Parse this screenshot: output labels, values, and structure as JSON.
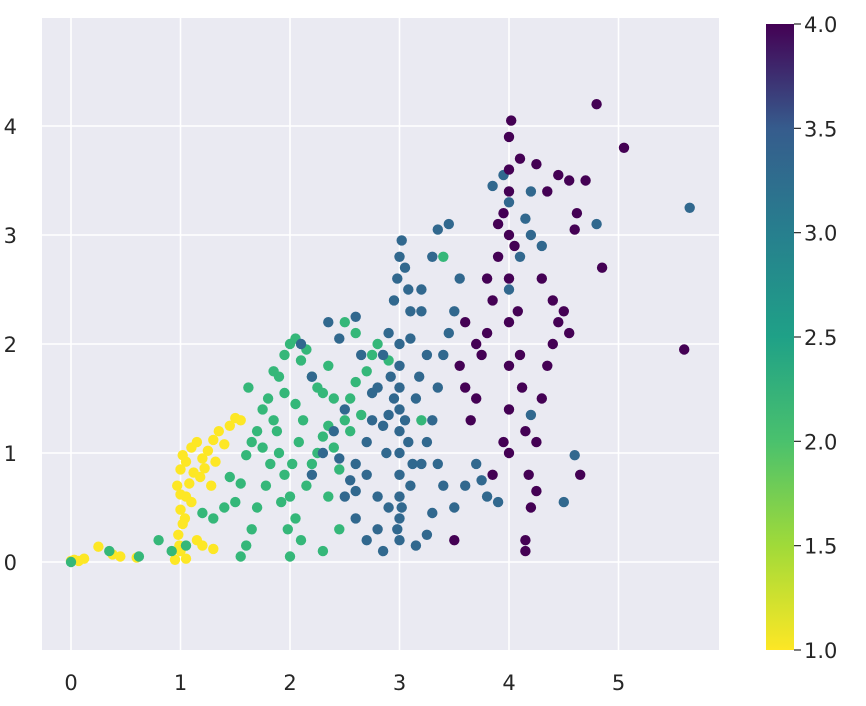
{
  "chart_data": {
    "type": "scatter",
    "title": "",
    "xlabel": "",
    "ylabel": "",
    "xlim": [
      -0.25,
      5.95
    ],
    "ylim": [
      -0.82,
      4.95
    ],
    "x_ticks": [
      "0",
      "1",
      "2",
      "3",
      "4",
      "5"
    ],
    "y_ticks": [
      "0",
      "1",
      "2",
      "3",
      "4"
    ],
    "grid": true,
    "colormap": "viridis (reversed)",
    "colorbar": {
      "range": [
        1.0,
        4.0
      ],
      "tick_labels": [
        "1.0",
        "1.5",
        "2.0",
        "2.5",
        "3.0",
        "3.5",
        "4.0"
      ]
    },
    "color_value_levels": [
      1,
      2,
      3,
      4
    ],
    "point_colors": {
      "1": "#fde725",
      "2": "#35b779",
      "3": "#31688e",
      "4": "#440154"
    },
    "series": [
      {
        "color_value": 1,
        "points": [
          [
            0.0,
            0.01
          ],
          [
            0.03,
            0.02
          ],
          [
            0.07,
            0.01
          ],
          [
            0.12,
            0.03
          ],
          [
            0.25,
            0.14
          ],
          [
            0.38,
            0.07
          ],
          [
            0.45,
            0.05
          ],
          [
            0.6,
            0.04
          ],
          [
            0.95,
            0.02
          ],
          [
            1.0,
            0.1
          ],
          [
            1.05,
            0.03
          ],
          [
            0.98,
            0.25
          ],
          [
            1.02,
            0.35
          ],
          [
            1.0,
            0.48
          ],
          [
            1.05,
            0.6
          ],
          [
            0.97,
            0.7
          ],
          [
            1.0,
            0.85
          ],
          [
            1.02,
            0.98
          ],
          [
            1.05,
            0.92
          ],
          [
            1.1,
            1.05
          ],
          [
            1.15,
            1.1
          ],
          [
            1.2,
            0.95
          ],
          [
            1.25,
            1.02
          ],
          [
            1.3,
            1.12
          ],
          [
            1.35,
            1.2
          ],
          [
            1.4,
            1.08
          ],
          [
            1.45,
            1.25
          ],
          [
            1.5,
            1.32
          ],
          [
            1.55,
            1.3
          ],
          [
            1.18,
            0.78
          ],
          [
            1.08,
            0.72
          ],
          [
            1.12,
            0.82
          ],
          [
            1.22,
            0.86
          ],
          [
            1.28,
            0.7
          ],
          [
            1.32,
            0.92
          ],
          [
            1.0,
            0.62
          ],
          [
            1.04,
            0.4
          ],
          [
            1.15,
            0.2
          ],
          [
            1.2,
            0.15
          ],
          [
            1.3,
            0.12
          ],
          [
            1.1,
            0.55
          ],
          [
            0.99,
            0.15
          ]
        ]
      },
      {
        "color_value": 2,
        "points": [
          [
            0.0,
            0.0
          ],
          [
            0.35,
            0.1
          ],
          [
            0.62,
            0.05
          ],
          [
            0.8,
            0.2
          ],
          [
            0.92,
            0.1
          ],
          [
            1.05,
            0.15
          ],
          [
            1.2,
            0.45
          ],
          [
            1.3,
            0.4
          ],
          [
            1.4,
            0.5
          ],
          [
            1.5,
            0.55
          ],
          [
            1.45,
            0.78
          ],
          [
            1.55,
            0.72
          ],
          [
            1.6,
            0.98
          ],
          [
            1.65,
            1.1
          ],
          [
            1.7,
            1.2
          ],
          [
            1.62,
            1.6
          ],
          [
            1.75,
            1.4
          ],
          [
            1.8,
            1.5
          ],
          [
            1.85,
            1.3
          ],
          [
            1.9,
            1.7
          ],
          [
            1.95,
            1.9
          ],
          [
            2.0,
            2.0
          ],
          [
            2.05,
            2.05
          ],
          [
            2.1,
            1.85
          ],
          [
            2.15,
            1.95
          ],
          [
            2.2,
            1.7
          ],
          [
            2.25,
            1.6
          ],
          [
            2.3,
            1.55
          ],
          [
            2.35,
            1.8
          ],
          [
            2.4,
            1.5
          ],
          [
            1.9,
            1.0
          ],
          [
            1.95,
            0.8
          ],
          [
            2.0,
            0.6
          ],
          [
            2.05,
            0.4
          ],
          [
            2.1,
            0.2
          ],
          [
            2.0,
            0.05
          ],
          [
            1.98,
            0.3
          ],
          [
            1.92,
            0.55
          ],
          [
            2.02,
            0.9
          ],
          [
            2.08,
            1.1
          ],
          [
            2.12,
            1.3
          ],
          [
            1.88,
            1.2
          ],
          [
            1.82,
            0.9
          ],
          [
            1.78,
            0.7
          ],
          [
            1.7,
            0.5
          ],
          [
            1.65,
            0.3
          ],
          [
            1.6,
            0.15
          ],
          [
            1.55,
            0.05
          ],
          [
            2.15,
            0.7
          ],
          [
            2.2,
            0.9
          ],
          [
            2.25,
            1.0
          ],
          [
            2.3,
            1.15
          ],
          [
            2.35,
            1.25
          ],
          [
            2.4,
            1.05
          ],
          [
            2.45,
            0.85
          ],
          [
            2.5,
            1.3
          ],
          [
            2.55,
            1.5
          ],
          [
            2.6,
            1.65
          ],
          [
            2.7,
            1.75
          ],
          [
            2.75,
            1.9
          ],
          [
            2.8,
            2.0
          ],
          [
            2.9,
            1.85
          ],
          [
            2.5,
            2.2
          ],
          [
            2.6,
            2.1
          ],
          [
            2.55,
            1.2
          ],
          [
            2.65,
            1.35
          ],
          [
            1.85,
            1.75
          ],
          [
            1.95,
            1.55
          ],
          [
            2.05,
            1.45
          ],
          [
            1.75,
            1.05
          ],
          [
            2.35,
            0.6
          ],
          [
            2.45,
            0.3
          ],
          [
            3.2,
            1.3
          ],
          [
            3.4,
            2.8
          ],
          [
            2.3,
            0.1
          ]
        ]
      },
      {
        "color_value": 3,
        "points": [
          [
            2.2,
            0.8
          ],
          [
            2.3,
            1.0
          ],
          [
            2.4,
            1.2
          ],
          [
            2.5,
            1.4
          ],
          [
            2.5,
            0.6
          ],
          [
            2.6,
            0.4
          ],
          [
            2.7,
            0.2
          ],
          [
            2.8,
            0.3
          ],
          [
            2.9,
            0.5
          ],
          [
            2.6,
            0.9
          ],
          [
            2.7,
            1.1
          ],
          [
            2.75,
            1.3
          ],
          [
            2.8,
            1.6
          ],
          [
            2.85,
            1.9
          ],
          [
            2.9,
            2.1
          ],
          [
            2.95,
            2.4
          ],
          [
            2.98,
            2.6
          ],
          [
            3.0,
            2.8
          ],
          [
            3.02,
            2.95
          ],
          [
            3.05,
            2.7
          ],
          [
            3.08,
            2.5
          ],
          [
            3.1,
            2.3
          ],
          [
            3.0,
            2.0
          ],
          [
            3.0,
            1.8
          ],
          [
            3.0,
            1.6
          ],
          [
            3.0,
            1.4
          ],
          [
            3.0,
            1.2
          ],
          [
            3.0,
            1.0
          ],
          [
            3.0,
            0.8
          ],
          [
            3.0,
            0.6
          ],
          [
            3.0,
            0.4
          ],
          [
            3.0,
            0.2
          ],
          [
            2.95,
            1.5
          ],
          [
            2.92,
            1.7
          ],
          [
            3.05,
            1.3
          ],
          [
            3.08,
            1.1
          ],
          [
            3.12,
            0.9
          ],
          [
            3.15,
            1.5
          ],
          [
            3.18,
            1.7
          ],
          [
            2.88,
            1.0
          ],
          [
            2.85,
            1.25
          ],
          [
            3.02,
            0.5
          ],
          [
            2.98,
            0.3
          ],
          [
            3.1,
            0.7
          ],
          [
            3.2,
            0.9
          ],
          [
            3.25,
            1.1
          ],
          [
            3.3,
            1.3
          ],
          [
            3.35,
            1.6
          ],
          [
            3.4,
            1.9
          ],
          [
            3.45,
            2.1
          ],
          [
            3.5,
            2.3
          ],
          [
            3.55,
            2.6
          ],
          [
            3.2,
            2.5
          ],
          [
            3.3,
            2.8
          ],
          [
            3.35,
            3.05
          ],
          [
            3.45,
            3.1
          ],
          [
            3.2,
            2.3
          ],
          [
            3.1,
            2.05
          ],
          [
            3.25,
            1.9
          ],
          [
            3.35,
            0.9
          ],
          [
            3.4,
            0.7
          ],
          [
            3.5,
            0.5
          ],
          [
            3.6,
            0.7
          ],
          [
            3.7,
            0.9
          ],
          [
            3.75,
            0.75
          ],
          [
            3.8,
            0.6
          ],
          [
            3.9,
            0.55
          ],
          [
            4.2,
            1.35
          ],
          [
            4.0,
            2.5
          ],
          [
            4.1,
            2.8
          ],
          [
            4.2,
            3.0
          ],
          [
            4.3,
            2.9
          ],
          [
            4.0,
            3.3
          ],
          [
            4.15,
            3.15
          ],
          [
            4.2,
            3.4
          ],
          [
            3.95,
            3.55
          ],
          [
            3.85,
            3.45
          ],
          [
            4.5,
            0.55
          ],
          [
            4.6,
            0.98
          ],
          [
            4.8,
            3.1
          ],
          [
            5.65,
            3.25
          ],
          [
            2.1,
            2.0
          ],
          [
            2.2,
            1.7
          ],
          [
            2.35,
            2.2
          ],
          [
            2.45,
            2.05
          ],
          [
            2.6,
            2.25
          ],
          [
            2.65,
            1.9
          ],
          [
            2.75,
            1.55
          ],
          [
            2.9,
            1.35
          ],
          [
            2.7,
            0.8
          ],
          [
            2.8,
            0.6
          ],
          [
            2.6,
            0.65
          ],
          [
            2.45,
            0.95
          ],
          [
            2.55,
            0.75
          ],
          [
            3.15,
            0.15
          ],
          [
            3.25,
            0.25
          ],
          [
            3.3,
            0.45
          ],
          [
            2.85,
            0.1
          ]
        ]
      },
      {
        "color_value": 4,
        "points": [
          [
            3.5,
            0.2
          ],
          [
            3.65,
            1.3
          ],
          [
            3.7,
            1.5
          ],
          [
            3.75,
            1.9
          ],
          [
            3.8,
            2.1
          ],
          [
            3.85,
            2.4
          ],
          [
            3.9,
            2.8
          ],
          [
            3.95,
            3.2
          ],
          [
            4.0,
            3.6
          ],
          [
            4.0,
            3.9
          ],
          [
            4.02,
            4.05
          ],
          [
            4.0,
            3.4
          ],
          [
            4.0,
            3.0
          ],
          [
            4.0,
            2.6
          ],
          [
            4.0,
            2.2
          ],
          [
            4.0,
            1.8
          ],
          [
            4.0,
            1.4
          ],
          [
            4.0,
            1.0
          ],
          [
            4.05,
            2.9
          ],
          [
            4.08,
            2.3
          ],
          [
            4.1,
            1.9
          ],
          [
            4.12,
            1.6
          ],
          [
            4.15,
            1.2
          ],
          [
            4.18,
            0.8
          ],
          [
            4.15,
            0.1
          ],
          [
            4.15,
            0.2
          ],
          [
            4.2,
            0.5
          ],
          [
            4.25,
            0.65
          ],
          [
            4.25,
            1.1
          ],
          [
            4.3,
            1.5
          ],
          [
            4.35,
            1.8
          ],
          [
            4.4,
            2.0
          ],
          [
            4.45,
            2.2
          ],
          [
            4.5,
            2.3
          ],
          [
            4.55,
            2.1
          ],
          [
            4.6,
            3.05
          ],
          [
            4.62,
            3.2
          ],
          [
            4.65,
            0.8
          ],
          [
            4.7,
            3.5
          ],
          [
            4.8,
            4.2
          ],
          [
            4.85,
            2.7
          ],
          [
            5.05,
            3.8
          ],
          [
            5.6,
            1.95
          ],
          [
            3.6,
            1.6
          ],
          [
            3.7,
            2.0
          ],
          [
            3.8,
            2.6
          ],
          [
            3.9,
            3.1
          ],
          [
            4.25,
            3.65
          ],
          [
            4.35,
            3.4
          ],
          [
            4.45,
            3.55
          ],
          [
            4.55,
            3.5
          ],
          [
            3.85,
            0.8
          ],
          [
            3.95,
            1.1
          ],
          [
            4.1,
            3.7
          ],
          [
            4.3,
            2.6
          ],
          [
            4.4,
            2.4
          ],
          [
            3.6,
            2.2
          ],
          [
            3.55,
            1.8
          ]
        ]
      }
    ]
  }
}
